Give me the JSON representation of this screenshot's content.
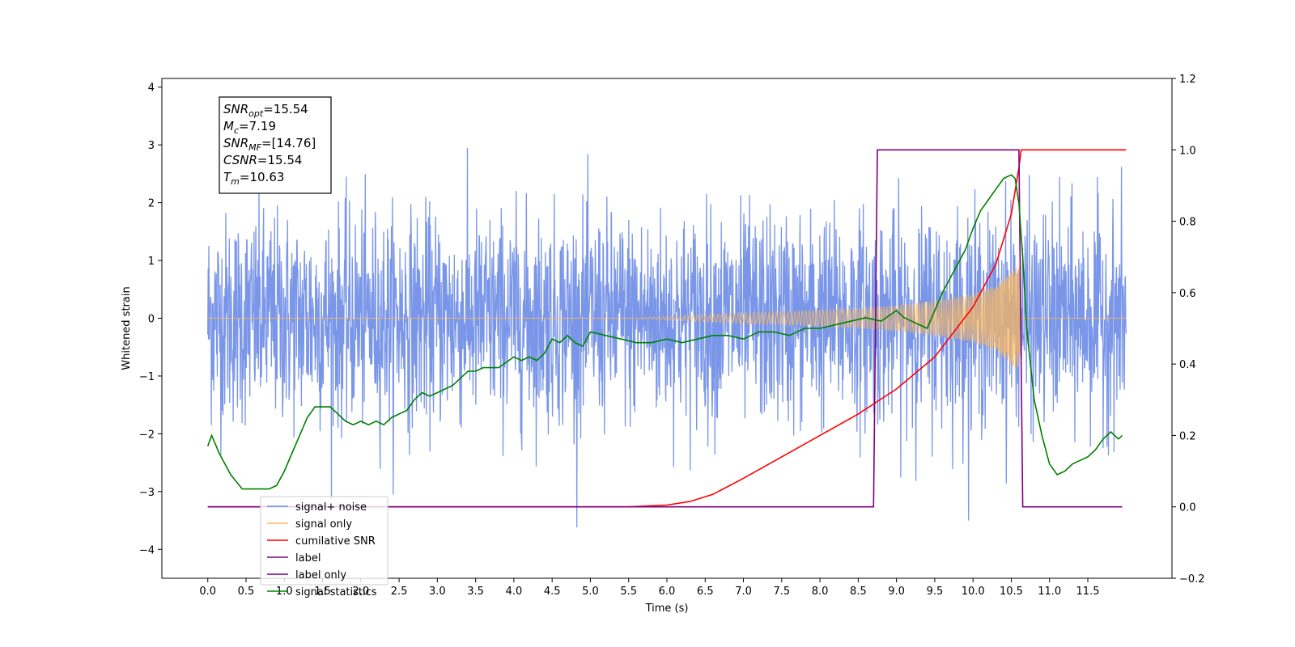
{
  "chart_data": {
    "type": "line",
    "title": "",
    "xlabel": "Time (s)",
    "ylabel_left": "Whitened strain",
    "ylabel_right": "",
    "xlim": [
      -0.6,
      12.6
    ],
    "ylim_left": [
      -4.5,
      4.15
    ],
    "ylim_right": [
      -0.2,
      1.2
    ],
    "x_ticks": [
      0.0,
      0.5,
      1.0,
      1.5,
      2.0,
      2.5,
      3.0,
      3.5,
      4.0,
      4.5,
      5.0,
      5.5,
      6.0,
      6.5,
      7.0,
      7.5,
      8.0,
      8.5,
      9.0,
      9.5,
      10.0,
      10.5,
      11.0,
      11.5
    ],
    "x_tick_labels": [
      "0.0",
      "0.5",
      "1.0",
      "1.5",
      "2.0",
      "2.5",
      "3.0",
      "3.5",
      "4.0",
      "4.5",
      "5.0",
      "5.5",
      "6.0",
      "6.5",
      "7.0",
      "7.5",
      "8.0",
      "8.5",
      "9.0",
      "9.5",
      "10.0",
      "10.5",
      "11.0",
      "11.5"
    ],
    "y_left_ticks": [
      -4,
      -3,
      -2,
      -1,
      0,
      1,
      2,
      3,
      4
    ],
    "y_left_tick_labels": [
      "−4",
      "−3",
      "−2",
      "−1",
      "0",
      "1",
      "2",
      "3",
      "4"
    ],
    "y_right_ticks": [
      -0.2,
      0.0,
      0.2,
      0.4,
      0.6,
      0.8,
      1.0,
      1.2
    ],
    "y_right_tick_labels": [
      "−0.2",
      "0.0",
      "0.2",
      "0.4",
      "0.6",
      "0.8",
      "1.0",
      "1.2"
    ],
    "grid": false,
    "legend_position": "lower-left",
    "legend": [
      {
        "label": "signal+ noise",
        "color": "#6f8de6"
      },
      {
        "label": "signal only",
        "color": "#ffb85a"
      },
      {
        "label": "cumilative SNR",
        "color": "#ff0000"
      },
      {
        "label": "label",
        "color": "#800080"
      },
      {
        "label": "label only",
        "color": "#800080"
      },
      {
        "label": "signal statistics",
        "color": "#008000"
      }
    ],
    "annotation": {
      "lines": [
        {
          "sym": "SNR",
          "sub": "opt",
          "value": "=15.54"
        },
        {
          "sym": "M",
          "sub": "c",
          "value": "=7.19"
        },
        {
          "sym": "SNR",
          "sub": "MF",
          "value": "=[14.76]"
        },
        {
          "sym": "CSNR",
          "sub": "",
          "value": "=15.54"
        },
        {
          "sym": "T",
          "sub": "m",
          "value": "=10.63"
        }
      ]
    },
    "series": [
      {
        "name": "signal+ noise",
        "axis": "left",
        "color": "#6f8de6",
        "noise_band": {
          "x_start": 0.0,
          "x_end": 12.0,
          "typical_range": [
            -2.0,
            2.0
          ],
          "max": 3.78,
          "min": -4.1
        }
      },
      {
        "name": "signal only",
        "axis": "left",
        "color": "#ffb85a",
        "envelope": {
          "x": [
            0.0,
            5.5,
            6.0,
            6.5,
            7.0,
            7.5,
            8.0,
            8.5,
            9.0,
            9.5,
            10.0,
            10.3,
            10.5,
            10.6,
            10.62,
            10.63,
            12.0
          ],
          "amplitude": [
            0.0,
            0.0,
            0.03,
            0.06,
            0.09,
            0.11,
            0.14,
            0.17,
            0.22,
            0.3,
            0.42,
            0.58,
            0.8,
            0.95,
            0.5,
            0.0,
            0.0
          ]
        }
      },
      {
        "name": "cumilative SNR",
        "axis": "right",
        "color": "#ff0000",
        "x": [
          0.0,
          5.5,
          6.0,
          6.3,
          6.6,
          7.0,
          7.5,
          8.0,
          8.5,
          9.0,
          9.5,
          10.0,
          10.3,
          10.5,
          10.6,
          10.63,
          12.0
        ],
        "y": [
          0.0,
          0.0,
          0.005,
          0.015,
          0.035,
          0.08,
          0.14,
          0.2,
          0.26,
          0.33,
          0.42,
          0.56,
          0.68,
          0.82,
          0.95,
          1.0,
          1.0
        ]
      },
      {
        "name": "label",
        "axis": "right",
        "color": "#800080",
        "x": [
          0.0,
          8.7,
          8.75,
          10.6,
          10.65,
          11.95
        ],
        "y": [
          0.0,
          0.0,
          1.0,
          1.0,
          0.0,
          0.0
        ]
      },
      {
        "name": "signal statistics",
        "axis": "right",
        "color": "#008000",
        "x": [
          0.0,
          0.05,
          0.15,
          0.3,
          0.45,
          0.6,
          0.8,
          0.9,
          1.0,
          1.1,
          1.2,
          1.3,
          1.4,
          1.5,
          1.6,
          1.7,
          1.8,
          1.9,
          2.0,
          2.1,
          2.2,
          2.3,
          2.4,
          2.5,
          2.6,
          2.7,
          2.8,
          2.9,
          3.0,
          3.1,
          3.2,
          3.3,
          3.4,
          3.5,
          3.6,
          3.8,
          4.0,
          4.1,
          4.2,
          4.3,
          4.4,
          4.5,
          4.6,
          4.7,
          4.8,
          4.9,
          5.0,
          5.2,
          5.4,
          5.6,
          5.8,
          6.0,
          6.2,
          6.4,
          6.6,
          6.8,
          7.0,
          7.2,
          7.4,
          7.6,
          7.8,
          8.0,
          8.2,
          8.4,
          8.6,
          8.8,
          9.0,
          9.1,
          9.2,
          9.3,
          9.4,
          9.5,
          9.6,
          9.7,
          9.8,
          9.9,
          10.0,
          10.1,
          10.2,
          10.3,
          10.4,
          10.5,
          10.55,
          10.6,
          10.65,
          10.7,
          10.8,
          10.9,
          11.0,
          11.1,
          11.2,
          11.3,
          11.4,
          11.5,
          11.6,
          11.7,
          11.8,
          11.9,
          11.95
        ],
        "y": [
          0.17,
          0.2,
          0.15,
          0.09,
          0.05,
          0.05,
          0.05,
          0.06,
          0.1,
          0.15,
          0.2,
          0.25,
          0.28,
          0.28,
          0.28,
          0.26,
          0.24,
          0.23,
          0.24,
          0.23,
          0.24,
          0.23,
          0.25,
          0.26,
          0.27,
          0.3,
          0.32,
          0.31,
          0.32,
          0.33,
          0.34,
          0.36,
          0.38,
          0.38,
          0.39,
          0.39,
          0.42,
          0.41,
          0.42,
          0.41,
          0.43,
          0.47,
          0.46,
          0.48,
          0.46,
          0.45,
          0.49,
          0.48,
          0.47,
          0.46,
          0.46,
          0.47,
          0.46,
          0.47,
          0.48,
          0.48,
          0.47,
          0.49,
          0.49,
          0.48,
          0.5,
          0.5,
          0.51,
          0.52,
          0.53,
          0.52,
          0.55,
          0.53,
          0.52,
          0.51,
          0.5,
          0.55,
          0.6,
          0.64,
          0.68,
          0.72,
          0.78,
          0.83,
          0.86,
          0.89,
          0.92,
          0.93,
          0.92,
          0.85,
          0.7,
          0.5,
          0.3,
          0.2,
          0.12,
          0.09,
          0.1,
          0.12,
          0.13,
          0.14,
          0.16,
          0.19,
          0.21,
          0.19,
          0.2
        ]
      }
    ]
  }
}
